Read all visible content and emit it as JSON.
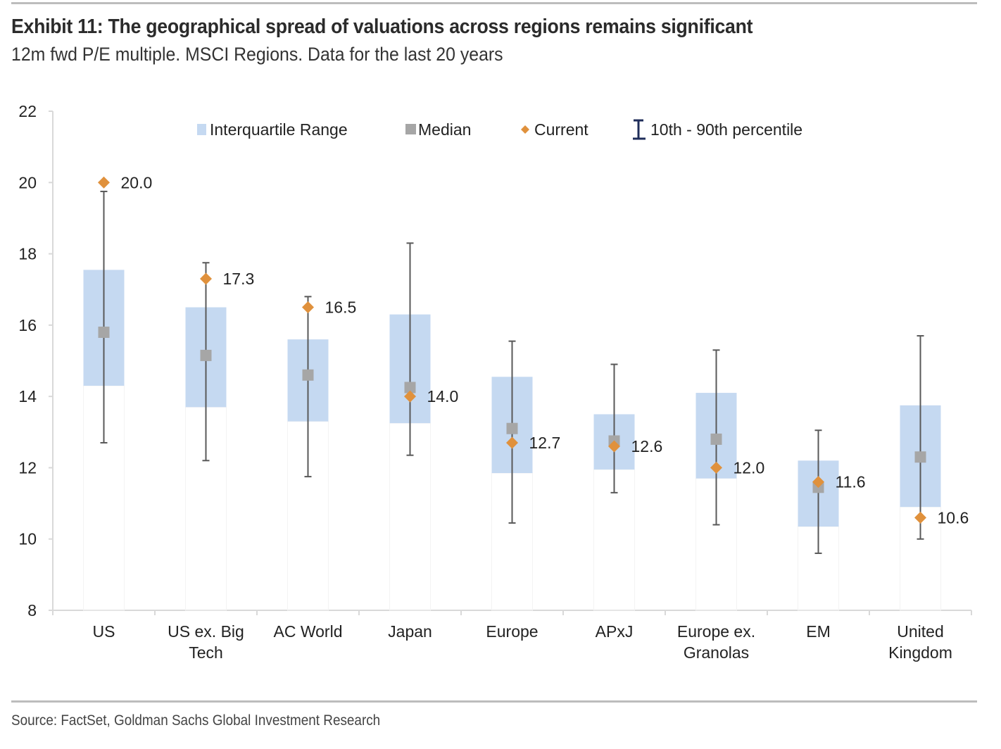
{
  "header": {
    "title": "Exhibit 11: The geographical spread of valuations across regions remains significant",
    "subtitle": "12m fwd P/E multiple. MSCI Regions. Data for the last 20 years"
  },
  "footer": {
    "source": "Source: FactSet, Goldman Sachs Global Investment Research"
  },
  "colors": {
    "iqr": "#c5d9f1",
    "median": "#a6a6a6",
    "current": "#e0913c",
    "whisker": "#595959",
    "axis": "#d9d9d9"
  },
  "chart_data": {
    "type": "box",
    "title": "Exhibit 11: The geographical spread of valuations across regions remains significant",
    "subtitle": "12m fwd P/E multiple. MSCI Regions. Data for the last 20 years",
    "xlabel": "",
    "ylabel": "",
    "ylim": [
      8,
      22
    ],
    "yticks": [
      "8",
      "10",
      "12",
      "14",
      "16",
      "18",
      "20",
      "22"
    ],
    "legend": {
      "position": "top",
      "items": [
        "Interquartile Range",
        "Median",
        "Current",
        "10th - 90th percentile"
      ]
    },
    "categories": [
      {
        "label": [
          "US"
        ],
        "p10": 12.7,
        "q1": 14.3,
        "median": 15.8,
        "q3": 17.55,
        "p90": 19.75,
        "current": 20.0,
        "current_label": "20.0"
      },
      {
        "label": [
          "US ex. Big",
          "Tech"
        ],
        "p10": 12.2,
        "q1": 13.7,
        "median": 15.15,
        "q3": 16.5,
        "p90": 17.75,
        "current": 17.3,
        "current_label": "17.3"
      },
      {
        "label": [
          "AC World"
        ],
        "p10": 11.75,
        "q1": 13.3,
        "median": 14.6,
        "q3": 15.6,
        "p90": 16.8,
        "current": 16.5,
        "current_label": "16.5"
      },
      {
        "label": [
          "Japan"
        ],
        "p10": 12.35,
        "q1": 13.25,
        "median": 14.25,
        "q3": 16.3,
        "p90": 18.3,
        "current": 14.0,
        "current_label": "14.0"
      },
      {
        "label": [
          "Europe"
        ],
        "p10": 10.45,
        "q1": 11.85,
        "median": 13.1,
        "q3": 14.55,
        "p90": 15.55,
        "current": 12.7,
        "current_label": "12.7"
      },
      {
        "label": [
          "APxJ"
        ],
        "p10": 11.3,
        "q1": 11.95,
        "median": 12.75,
        "q3": 13.5,
        "p90": 14.9,
        "current": 12.6,
        "current_label": "12.6"
      },
      {
        "label": [
          "Europe ex.",
          "Granolas"
        ],
        "p10": 10.4,
        "q1": 11.7,
        "median": 12.8,
        "q3": 14.1,
        "p90": 15.3,
        "current": 12.0,
        "current_label": "12.0"
      },
      {
        "label": [
          "EM"
        ],
        "p10": 9.6,
        "q1": 10.35,
        "median": 11.45,
        "q3": 12.2,
        "p90": 13.05,
        "current": 11.6,
        "current_label": "11.6"
      },
      {
        "label": [
          "United",
          "Kingdom"
        ],
        "p10": 10.0,
        "q1": 10.9,
        "median": 12.3,
        "q3": 13.75,
        "p90": 15.7,
        "current": 10.6,
        "current_label": "10.6"
      }
    ]
  }
}
